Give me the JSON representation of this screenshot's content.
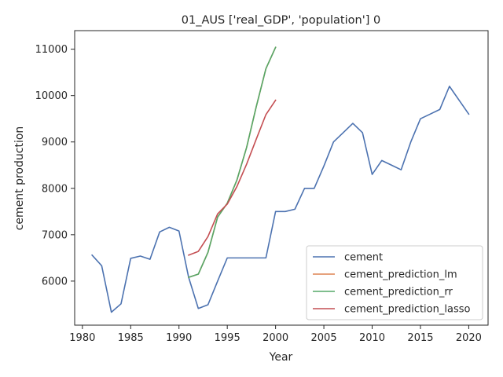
{
  "chart_data": {
    "type": "line",
    "title": "01_AUS ['real_GDP', 'population'] 0",
    "xlabel": "Year",
    "ylabel": "cement production",
    "xlim": [
      1979.2,
      2022.0
    ],
    "ylim": [
      5050,
      11400
    ],
    "xticks": [
      1980,
      1985,
      1990,
      1995,
      2000,
      2005,
      2010,
      2015,
      2020
    ],
    "yticks": [
      6000,
      7000,
      8000,
      9000,
      10000,
      11000
    ],
    "grid": false,
    "legend_position": "lower right",
    "series": [
      {
        "name": "cement",
        "color": "#4c72b0",
        "x": [
          1981,
          1982,
          1983,
          1984,
          1985,
          1986,
          1987,
          1988,
          1989,
          1990,
          1991,
          1992,
          1993,
          1994,
          1995,
          1996,
          1997,
          1998,
          1999,
          2000,
          2001,
          2002,
          2003,
          2004,
          2005,
          2006,
          2007,
          2008,
          2009,
          2010,
          2011,
          2012,
          2013,
          2014,
          2015,
          2016,
          2017,
          2018,
          2019,
          2020
        ],
        "y": [
          6560,
          6330,
          5330,
          5510,
          6490,
          6540,
          6470,
          7060,
          7160,
          7080,
          6080,
          5410,
          5490,
          6000,
          6500,
          6500,
          6500,
          6500,
          6500,
          7500,
          7500,
          7550,
          8000,
          8000,
          8480,
          9000,
          9200,
          9400,
          9200,
          8300,
          8600,
          8500,
          8400,
          9000,
          9500,
          9600,
          9700,
          10200,
          9900,
          9600
        ]
      },
      {
        "name": "cement_prediction_lm",
        "color": "#dd8452",
        "x": [
          1991,
          1992,
          1993,
          1994,
          1995,
          1996,
          1997,
          1998,
          1999,
          2000
        ],
        "y": [
          6080,
          6150,
          6620,
          7380,
          7680,
          8180,
          8880,
          9760,
          10580,
          11040
        ]
      },
      {
        "name": "cement_prediction_rr",
        "color": "#55a868",
        "x": [
          1991,
          1992,
          1993,
          1994,
          1995,
          1996,
          1997,
          1998,
          1999,
          2000
        ],
        "y": [
          6080,
          6150,
          6620,
          7380,
          7680,
          8180,
          8880,
          9760,
          10580,
          11040
        ]
      },
      {
        "name": "cement_prediction_lasso",
        "color": "#c44e52",
        "x": [
          1991,
          1992,
          1993,
          1994,
          1995,
          1996,
          1997,
          1998,
          1999,
          2000
        ],
        "y": [
          6560,
          6640,
          6960,
          7450,
          7660,
          8040,
          8520,
          9060,
          9590,
          9900
        ]
      }
    ]
  }
}
